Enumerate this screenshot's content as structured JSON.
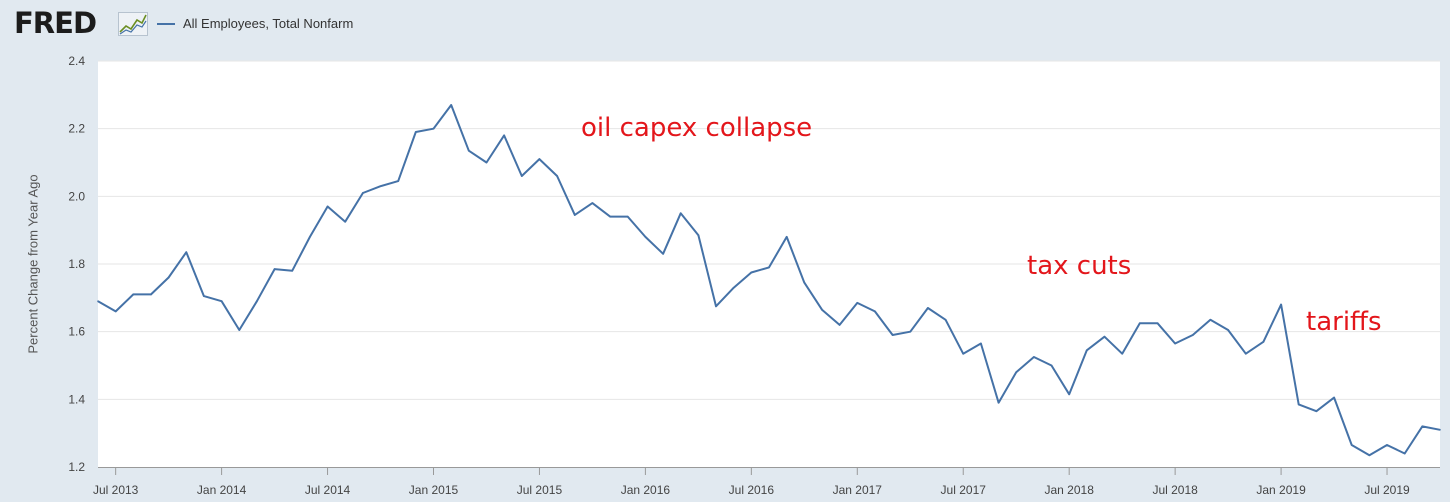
{
  "brand": {
    "name": "FRED"
  },
  "chart_data": {
    "type": "line",
    "series": [
      {
        "name": "All Employees, Total Nonfarm",
        "color": "#4572a7",
        "x": [
          "2013-06",
          "2013-07",
          "2013-08",
          "2013-09",
          "2013-10",
          "2013-11",
          "2013-12",
          "2014-01",
          "2014-02",
          "2014-03",
          "2014-04",
          "2014-05",
          "2014-06",
          "2014-07",
          "2014-08",
          "2014-09",
          "2014-10",
          "2014-11",
          "2014-12",
          "2015-01",
          "2015-02",
          "2015-03",
          "2015-04",
          "2015-05",
          "2015-06",
          "2015-07",
          "2015-08",
          "2015-09",
          "2015-10",
          "2015-11",
          "2015-12",
          "2016-01",
          "2016-02",
          "2016-03",
          "2016-04",
          "2016-05",
          "2016-06",
          "2016-07",
          "2016-08",
          "2016-09",
          "2016-10",
          "2016-11",
          "2016-12",
          "2017-01",
          "2017-02",
          "2017-03",
          "2017-04",
          "2017-05",
          "2017-06",
          "2017-07",
          "2017-08",
          "2017-09",
          "2017-10",
          "2017-11",
          "2017-12",
          "2018-01",
          "2018-02",
          "2018-03",
          "2018-04",
          "2018-05",
          "2018-06",
          "2018-07",
          "2018-08",
          "2018-09",
          "2018-10",
          "2018-11",
          "2018-12",
          "2019-01",
          "2019-02",
          "2019-03",
          "2019-04",
          "2019-05",
          "2019-06",
          "2019-07",
          "2019-08",
          "2019-09",
          "2019-10"
        ],
        "values": [
          1.69,
          1.66,
          1.71,
          1.71,
          1.76,
          1.835,
          1.705,
          1.69,
          1.605,
          1.69,
          1.785,
          1.78,
          1.88,
          1.97,
          1.925,
          2.01,
          2.03,
          2.045,
          2.19,
          2.2,
          2.27,
          2.135,
          2.1,
          2.18,
          2.06,
          2.11,
          2.06,
          1.945,
          1.98,
          1.94,
          1.94,
          1.88,
          1.83,
          1.95,
          1.885,
          1.675,
          1.73,
          1.775,
          1.79,
          1.88,
          1.745,
          1.665,
          1.62,
          1.685,
          1.66,
          1.59,
          1.6,
          1.67,
          1.635,
          1.535,
          1.565,
          1.39,
          1.48,
          1.525,
          1.5,
          1.415,
          1.545,
          1.585,
          1.535,
          1.625,
          1.625,
          1.565,
          1.59,
          1.635,
          1.605,
          1.535,
          1.57,
          1.68,
          1.385,
          1.365,
          1.405,
          1.265,
          1.235,
          1.265,
          1.24,
          1.32,
          1.31
        ]
      }
    ],
    "ylabel": "Percent Change from Year Ago",
    "ylim": [
      1.2,
      2.4
    ],
    "yticks": [
      "1.2",
      "1.4",
      "1.6",
      "1.8",
      "2.0",
      "2.2",
      "2.4"
    ],
    "xticks": [
      {
        "label": "Jul 2013",
        "x": "2013-07"
      },
      {
        "label": "Jan 2014",
        "x": "2014-01"
      },
      {
        "label": "Jul 2014",
        "x": "2014-07"
      },
      {
        "label": "Jan 2015",
        "x": "2015-01"
      },
      {
        "label": "Jul 2015",
        "x": "2015-07"
      },
      {
        "label": "Jan 2016",
        "x": "2016-01"
      },
      {
        "label": "Jul 2016",
        "x": "2016-07"
      },
      {
        "label": "Jan 2017",
        "x": "2017-01"
      },
      {
        "label": "Jul 2017",
        "x": "2017-07"
      },
      {
        "label": "Jan 2018",
        "x": "2018-01"
      },
      {
        "label": "Jul 2018",
        "x": "2018-07"
      },
      {
        "label": "Jan 2019",
        "x": "2019-01"
      },
      {
        "label": "Jul 2019",
        "x": "2019-07"
      }
    ],
    "grid": true,
    "legend": "top-left",
    "annotations": [
      {
        "text": "oil capex collapse",
        "color": "#e3161b"
      },
      {
        "text": "tax cuts",
        "color": "#e3161b"
      },
      {
        "text": "tariffs",
        "color": "#e3161b"
      }
    ]
  }
}
